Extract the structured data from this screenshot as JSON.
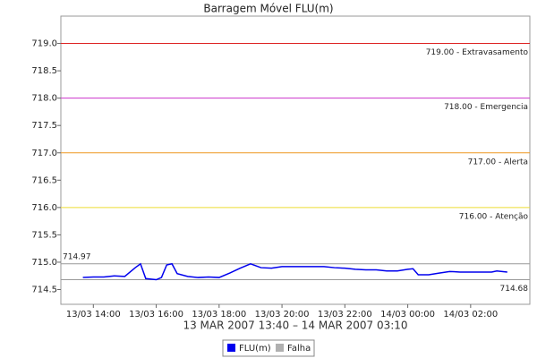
{
  "chart_data": {
    "type": "line",
    "title": "Barragem Móvel FLU(m)",
    "x_label": "13 MAR 2007 13:40 – 14 MAR 2007 03:10",
    "x": [
      "13/03 13:40",
      "13/03 14:00",
      "13/03 14:20",
      "13/03 14:40",
      "13/03 15:00",
      "13/03 15:20",
      "13/03 15:30",
      "13/03 15:40",
      "13/03 16:00",
      "13/03 16:10",
      "13/03 16:20",
      "13/03 16:30",
      "13/03 16:40",
      "13/03 17:00",
      "13/03 17:20",
      "13/03 17:40",
      "13/03 18:00",
      "13/03 18:20",
      "13/03 18:40",
      "13/03 19:00",
      "13/03 19:20",
      "13/03 19:40",
      "13/03 20:00",
      "13/03 20:20",
      "13/03 20:40",
      "13/03 21:00",
      "13/03 21:20",
      "13/03 21:40",
      "13/03 22:00",
      "13/03 22:20",
      "13/03 22:40",
      "13/03 23:00",
      "13/03 23:20",
      "13/03 23:40",
      "14/03 00:00",
      "14/03 00:10",
      "14/03 00:20",
      "14/03 00:40",
      "14/03 01:00",
      "14/03 01:20",
      "14/03 01:40",
      "14/03 02:00",
      "14/03 02:20",
      "14/03 02:40",
      "14/03 02:50",
      "14/03 03:10"
    ],
    "series": [
      {
        "name": "FLU(m)",
        "color": "#0000ee",
        "values": [
          714.72,
          714.73,
          714.73,
          714.75,
          714.74,
          714.9,
          714.97,
          714.7,
          714.68,
          714.72,
          714.95,
          714.97,
          714.79,
          714.74,
          714.72,
          714.73,
          714.72,
          714.8,
          714.89,
          714.97,
          714.9,
          714.89,
          714.92,
          714.92,
          714.92,
          714.92,
          714.92,
          714.9,
          714.89,
          714.87,
          714.86,
          714.86,
          714.84,
          714.84,
          714.87,
          714.88,
          714.77,
          714.77,
          714.8,
          714.83,
          714.82,
          714.82,
          714.82,
          714.82,
          714.84,
          714.82
        ]
      }
    ],
    "failures": {
      "name": "Falha",
      "color": "#b0b0b0"
    },
    "xlim": [
      "13/03 12:58",
      "14/03 03:53"
    ],
    "xticks": [
      "13/03 14:00",
      "13/03 16:00",
      "13/03 18:00",
      "13/03 20:00",
      "13/03 22:00",
      "14/03 00:00",
      "14/03 02:00"
    ],
    "ylim": [
      714.23,
      719.5
    ],
    "yticks": [
      714.5,
      {
        "value": 715,
        "label": "715.0"
      },
      715.5,
      {
        "value": 716,
        "label": "716.0"
      },
      716.5,
      {
        "value": 717,
        "label": "717.0"
      },
      717.5,
      {
        "value": 718,
        "label": "718.0"
      },
      718.5,
      {
        "value": 719,
        "label": "719.0"
      }
    ],
    "thresholds": [
      {
        "value": 719,
        "label": "719.00 - Extravasamento",
        "color": "#dd2222"
      },
      {
        "value": 718,
        "label": "718.00 - Emergencia",
        "color": "#cc33cc"
      },
      {
        "value": 717,
        "label": "717.00 - Alerta",
        "color": "#ee9922"
      },
      {
        "value": 716,
        "label": "716.00 - Atenção",
        "color": "#eedd33"
      }
    ],
    "max_line": {
      "value": 714.97,
      "label": "714.97",
      "color": "#999999"
    },
    "min_line": {
      "value": 714.68,
      "label": "714.68",
      "color": "#999999"
    }
  }
}
